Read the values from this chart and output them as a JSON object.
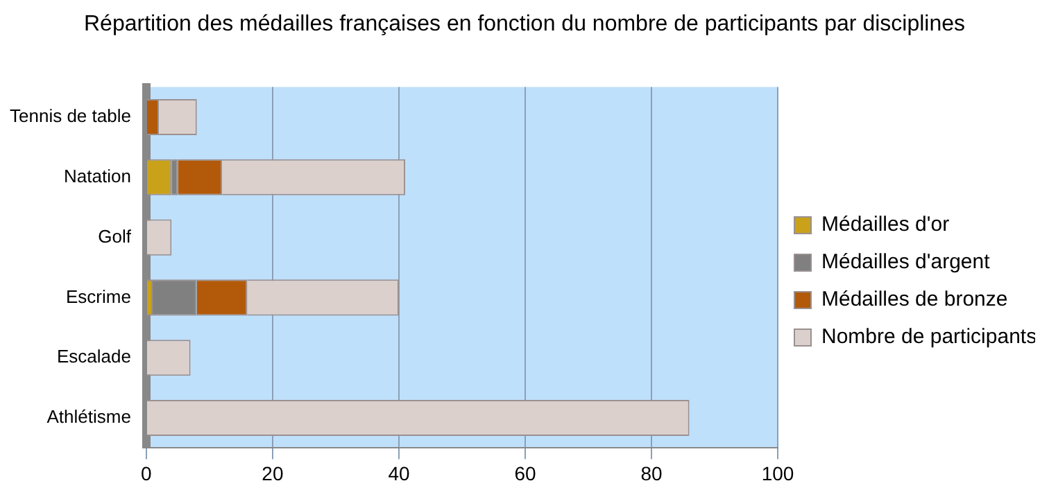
{
  "chart_data": {
    "type": "bar",
    "orientation": "horizontal",
    "stacked": true,
    "title": "Répartition des médailles françaises en fonction du nombre de participants par disciplines",
    "categories": [
      "Tennis de table",
      "Natation",
      "Golf",
      "Escrime",
      "Escalade",
      "Athlétisme"
    ],
    "series": [
      {
        "name": "Médailles d'or",
        "color": "#c9a21a",
        "values": [
          0,
          4,
          0,
          1,
          0,
          0
        ]
      },
      {
        "name": "Médailles d'argent",
        "color": "#808080",
        "values": [
          0,
          1,
          0,
          7,
          0,
          0
        ]
      },
      {
        "name": "Médailles de bronze",
        "color": "#b35a0a",
        "values": [
          2,
          7,
          0,
          8,
          0,
          0
        ]
      },
      {
        "name": "Nombre de participants",
        "color": "#dcd0cc",
        "values": [
          6,
          29,
          4,
          24,
          7,
          86
        ]
      }
    ],
    "xlim": [
      0,
      100
    ],
    "xticks": [
      0,
      20,
      40,
      60,
      80,
      100
    ],
    "grid": "x",
    "legend": "right"
  }
}
